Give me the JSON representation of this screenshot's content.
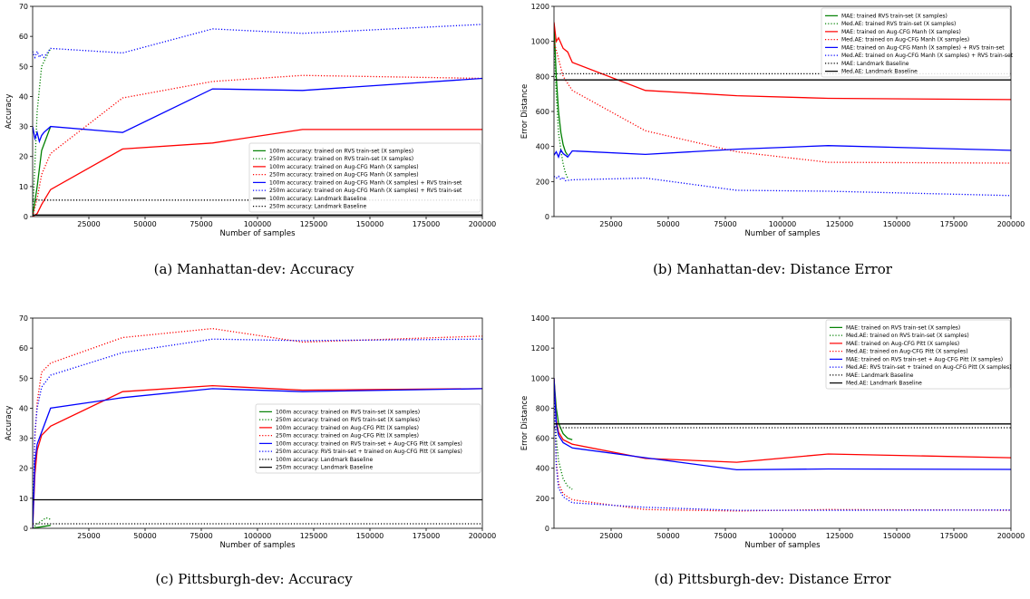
{
  "chart_data": [
    {
      "type": "line",
      "caption": "(a) Manhattan-dev: Accuracy",
      "xlabel": "Number of samples",
      "ylabel": "Accuracy",
      "xlim": [
        0,
        200000
      ],
      "ylim": [
        0,
        70
      ],
      "xticks": [
        25000,
        50000,
        75000,
        100000,
        125000,
        150000,
        175000,
        200000
      ],
      "yticks": [
        0,
        10,
        20,
        30,
        40,
        50,
        60,
        70
      ],
      "legend_position": "lower-right",
      "series": [
        {
          "name": "100m accuracy: trained on RVS train-set (X samples)",
          "color": "#008000",
          "dash": "solid",
          "x": [
            0,
            2000,
            4000,
            8000
          ],
          "y": [
            0,
            10,
            22,
            30
          ]
        },
        {
          "name": "250m accuracy: trained on RVS train-set (X samples)",
          "color": "#008000",
          "dash": "dotted",
          "x": [
            0,
            2000,
            4000,
            8000
          ],
          "y": [
            0,
            35,
            50,
            56
          ]
        },
        {
          "name": "100m accuracy: trained on Aug-CFG Manh (X samples)",
          "color": "#ff0000",
          "dash": "solid",
          "x": [
            0,
            2000,
            4000,
            8000,
            40000,
            80000,
            120000,
            200000
          ],
          "y": [
            0,
            1,
            4,
            9,
            22.5,
            24.5,
            29,
            29
          ]
        },
        {
          "name": "250m accuracy: trained on Aug-CFG Manh (X samples)",
          "color": "#ff0000",
          "dash": "dotted",
          "x": [
            0,
            2000,
            4000,
            8000,
            40000,
            80000,
            120000,
            200000
          ],
          "y": [
            0,
            6,
            14,
            21,
            39.5,
            45,
            47,
            46
          ]
        },
        {
          "name": "100m accuracy: trained on Aug-CFG Manh (X samples) + RVS train-set",
          "color": "#0000ff",
          "dash": "solid",
          "x": [
            0,
            1000,
            2000,
            3000,
            4000,
            5000,
            8000,
            40000,
            80000,
            120000,
            200000
          ],
          "y": [
            30,
            26,
            28,
            25,
            27,
            28,
            30,
            28,
            42.5,
            42,
            46
          ]
        },
        {
          "name": "250m accuracy: trained on Aug-CFG Manh (X samples) + RVS train-set",
          "color": "#0000ff",
          "dash": "dotted",
          "x": [
            0,
            1000,
            2000,
            3000,
            4000,
            5000,
            8000,
            40000,
            80000,
            120000,
            200000
          ],
          "y": [
            55,
            53,
            55,
            53,
            54,
            53,
            56,
            54.5,
            62.5,
            61,
            64
          ]
        },
        {
          "name": "100m accuracy: Landmark Baseline",
          "color": "#000000",
          "dash": "solid",
          "x": [
            0,
            200000
          ],
          "y": [
            0.5,
            0.5
          ]
        },
        {
          "name": "250m accuracy: Landmark Baseline",
          "color": "#000000",
          "dash": "dotted",
          "x": [
            0,
            200000
          ],
          "y": [
            5.5,
            5.5
          ]
        }
      ]
    },
    {
      "type": "line",
      "caption": "(b) Manhattan-dev: Distance Error",
      "xlabel": "Number of samples",
      "ylabel": "Error Distance",
      "xlim": [
        0,
        200000
      ],
      "ylim": [
        0,
        1200
      ],
      "xticks": [
        25000,
        50000,
        75000,
        100000,
        125000,
        150000,
        175000,
        200000
      ],
      "yticks": [
        0,
        200,
        400,
        600,
        800,
        1000,
        1200
      ],
      "legend_position": "upper-right",
      "series": [
        {
          "name": "MAE: trained RVS train-set (X samples)",
          "color": "#008000",
          "dash": "solid",
          "x": [
            0,
            1000,
            2000,
            3000,
            4000,
            5000,
            6000
          ],
          "y": [
            1100,
            800,
            600,
            480,
            410,
            370,
            350
          ]
        },
        {
          "name": "Med.AE: trained RVS train-set (X samples)",
          "color": "#008000",
          "dash": "dotted",
          "x": [
            0,
            1000,
            2000,
            3000,
            4000,
            5000,
            6000
          ],
          "y": [
            1000,
            700,
            480,
            380,
            300,
            250,
            220
          ]
        },
        {
          "name": "MAE: trained on Aug-CFG Manh (X samples)",
          "color": "#ff0000",
          "dash": "solid",
          "x": [
            0,
            1000,
            2000,
            4000,
            6000,
            8000,
            40000,
            80000,
            120000,
            200000
          ],
          "y": [
            1110,
            1000,
            1020,
            960,
            940,
            880,
            720,
            690,
            675,
            668
          ]
        },
        {
          "name": "Med.AE: trained on Aug-CFG Manh (X samples)",
          "color": "#ff0000",
          "dash": "dotted",
          "x": [
            0,
            2000,
            4000,
            8000,
            40000,
            80000,
            120000,
            200000
          ],
          "y": [
            1000,
            900,
            800,
            720,
            490,
            370,
            310,
            305
          ]
        },
        {
          "name": "MAE: trained on Aug-CFG Manh (X samples) + RVS train-set",
          "color": "#0000ff",
          "dash": "solid",
          "x": [
            0,
            1000,
            2000,
            3000,
            4000,
            5000,
            6000,
            8000,
            40000,
            80000,
            120000,
            200000
          ],
          "y": [
            350,
            370,
            340,
            380,
            360,
            350,
            340,
            375,
            355,
            385,
            405,
            378
          ]
        },
        {
          "name": "Med.AE: trained on Aug-CFG Manh (X samples) + RVS train-set",
          "color": "#0000ff",
          "dash": "dotted",
          "x": [
            0,
            1000,
            2000,
            3000,
            4000,
            5000,
            8000,
            40000,
            80000,
            120000,
            200000
          ],
          "y": [
            230,
            220,
            230,
            210,
            225,
            205,
            210,
            220,
            150,
            145,
            120
          ]
        },
        {
          "name": "MAE: Landmark Baseline",
          "color": "#000000",
          "dash": "dotted",
          "x": [
            0,
            200000
          ],
          "y": [
            815,
            815
          ]
        },
        {
          "name": "Med.AE: Landmark Baseline",
          "color": "#000000",
          "dash": "solid",
          "x": [
            0,
            200000
          ],
          "y": [
            780,
            780
          ]
        }
      ]
    },
    {
      "type": "line",
      "caption": "(c) Pittsburgh-dev: Accuracy",
      "xlabel": "Number of samples",
      "ylabel": "Accuracy",
      "xlim": [
        0,
        200000
      ],
      "ylim": [
        0,
        70
      ],
      "xticks": [
        25000,
        50000,
        75000,
        100000,
        125000,
        150000,
        175000,
        200000
      ],
      "yticks": [
        0,
        10,
        20,
        30,
        40,
        50,
        60,
        70
      ],
      "legend_position": "center-right",
      "series": [
        {
          "name": "100m accuracy: trained on RVS train-set (X samples)",
          "color": "#008000",
          "dash": "solid",
          "x": [
            0,
            2000,
            4000,
            8000
          ],
          "y": [
            0,
            0.3,
            0.5,
            1
          ]
        },
        {
          "name": "250m accuracy: trained on RVS train-set (X samples)",
          "color": "#008000",
          "dash": "dotted",
          "x": [
            0,
            2000,
            4000,
            6000,
            8000
          ],
          "y": [
            0,
            1.5,
            2.5,
            3.5,
            3
          ]
        },
        {
          "name": "100m accuracy: trained on Aug-CFG Pitt (X samples)",
          "color": "#ff0000",
          "dash": "solid",
          "x": [
            0,
            1000,
            2000,
            4000,
            8000,
            40000,
            80000,
            120000,
            200000
          ],
          "y": [
            0,
            18,
            26,
            31,
            34,
            45.5,
            47.5,
            46,
            46.5
          ]
        },
        {
          "name": "250m accuracy: trained on Aug-CFG Pitt (X samples)",
          "color": "#ff0000",
          "dash": "dotted",
          "x": [
            0,
            1000,
            2000,
            4000,
            8000,
            40000,
            80000,
            120000,
            200000
          ],
          "y": [
            0,
            30,
            42,
            52,
            55,
            63.5,
            66.5,
            62,
            64
          ]
        },
        {
          "name": "100m accuracy: trained on RVS train-set + Aug-CFG Pitt (X samples)",
          "color": "#0000ff",
          "dash": "solid",
          "x": [
            0,
            1000,
            2000,
            4000,
            8000,
            40000,
            80000,
            120000,
            200000
          ],
          "y": [
            0,
            22,
            28,
            32,
            40,
            43.5,
            46.5,
            45.5,
            46.5
          ]
        },
        {
          "name": "250m accuracy: RVS train-set + trained on Aug-CFG Pitt (X samples)",
          "color": "#0000ff",
          "dash": "dotted",
          "x": [
            0,
            1000,
            2000,
            4000,
            8000,
            40000,
            80000,
            120000,
            200000
          ],
          "y": [
            0,
            32,
            40,
            47,
            51,
            58.5,
            63,
            62.5,
            63
          ]
        },
        {
          "name": "100m accuracy: Landmark Baseline",
          "color": "#000000",
          "dash": "dotted",
          "x": [
            0,
            200000
          ],
          "y": [
            1.5,
            1.5
          ]
        },
        {
          "name": "250m accuracy: Landmark Baseline",
          "color": "#000000",
          "dash": "solid",
          "x": [
            0,
            200000
          ],
          "y": [
            9.5,
            9.5
          ]
        }
      ]
    },
    {
      "type": "line",
      "caption": "(d) Pittsburgh-dev: Distance Error",
      "xlabel": "Number of samples",
      "ylabel": "Error Distance",
      "xlim": [
        0,
        200000
      ],
      "ylim": [
        0,
        1400
      ],
      "xticks": [
        25000,
        50000,
        75000,
        100000,
        125000,
        150000,
        175000,
        200000
      ],
      "yticks": [
        0,
        200,
        400,
        600,
        800,
        1000,
        1200,
        1400
      ],
      "legend_position": "upper-right",
      "series": [
        {
          "name": "MAE: trained on RVS train-set (X samples)",
          "color": "#008000",
          "dash": "solid",
          "x": [
            0,
            1000,
            2000,
            4000,
            6000,
            8000
          ],
          "y": [
            1000,
            800,
            700,
            630,
            600,
            590
          ]
        },
        {
          "name": "Med.AE: trained on RVS train-set (X samples)",
          "color": "#008000",
          "dash": "dotted",
          "x": [
            0,
            1000,
            2000,
            4000,
            6000,
            8000
          ],
          "y": [
            950,
            600,
            450,
            330,
            280,
            260
          ]
        },
        {
          "name": "MAE: trained on Aug-CFG Pitt (X samples)",
          "color": "#ff0000",
          "dash": "solid",
          "x": [
            0,
            1000,
            2000,
            4000,
            8000,
            40000,
            80000,
            120000,
            200000
          ],
          "y": [
            1000,
            720,
            640,
            590,
            560,
            465,
            440,
            495,
            470
          ]
        },
        {
          "name": "Med.AE: trained on Aug-CFG Pitt (X samples)",
          "color": "#ff0000",
          "dash": "dotted",
          "x": [
            0,
            1000,
            2000,
            4000,
            8000,
            40000,
            80000,
            120000,
            200000
          ],
          "y": [
            950,
            450,
            300,
            230,
            190,
            125,
            115,
            125,
            120
          ]
        },
        {
          "name": "MAE: trained on RVS train-set + Aug-CFG Pitt (X samples)",
          "color": "#0000ff",
          "dash": "solid",
          "x": [
            0,
            1000,
            2000,
            4000,
            8000,
            40000,
            80000,
            120000,
            200000
          ],
          "y": [
            1000,
            700,
            620,
            570,
            535,
            470,
            390,
            395,
            392
          ]
        },
        {
          "name": "Med.AE: RVS train-set + trained on Aug-CFG Pitt (X samples)",
          "color": "#0000ff",
          "dash": "dotted",
          "x": [
            0,
            1000,
            2000,
            4000,
            8000,
            40000,
            80000,
            120000,
            200000
          ],
          "y": [
            950,
            420,
            270,
            210,
            170,
            140,
            120,
            120,
            122
          ]
        },
        {
          "name": "MAE: Landmark Baseline",
          "color": "#000000",
          "dash": "dotted",
          "x": [
            0,
            200000
          ],
          "y": [
            670,
            670
          ]
        },
        {
          "name": "Med.AE: Landmark Baseline",
          "color": "#000000",
          "dash": "solid",
          "x": [
            0,
            200000
          ],
          "y": [
            695,
            695
          ]
        }
      ]
    }
  ]
}
